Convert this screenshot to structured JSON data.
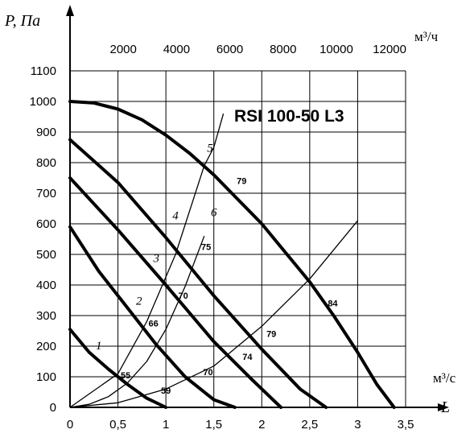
{
  "chart_data": {
    "type": "line",
    "title": "RSI  100-50  L3",
    "xlabel": "L",
    "x_unit": "м³/с",
    "ylabel": "P, Па",
    "x2_unit": "м³/ч",
    "xlim": [
      0,
      3.5
    ],
    "ylim": [
      0,
      1100
    ],
    "x2lim": [
      0,
      12600
    ],
    "grid": true,
    "x_ticks": [
      "0",
      "0,5",
      "1",
      "1,5",
      "2",
      "2,5",
      "3",
      "3,5"
    ],
    "y_ticks": [
      "0",
      "100",
      "200",
      "300",
      "400",
      "500",
      "600",
      "700",
      "800",
      "900",
      "1000",
      "1100"
    ],
    "x2_ticks": [
      "2000",
      "4000",
      "6000",
      "8000",
      "10000",
      "12000"
    ],
    "fan_curves": [
      {
        "x": [
          0,
          0.2,
          0.4,
          0.6,
          0.8,
          1.0
        ],
        "y": [
          255,
          180,
          125,
          75,
          30,
          0
        ]
      },
      {
        "x": [
          0,
          0.3,
          0.6,
          0.9,
          1.2,
          1.5,
          1.72
        ],
        "y": [
          590,
          445,
          325,
          205,
          100,
          25,
          0
        ]
      },
      {
        "x": [
          0,
          0.5,
          1.0,
          1.5,
          1.9,
          2.2
        ],
        "y": [
          750,
          580,
          400,
          215,
          90,
          0
        ]
      },
      {
        "x": [
          0,
          0.5,
          1.0,
          1.5,
          2.0,
          2.4,
          2.67
        ],
        "y": [
          875,
          735,
          555,
          365,
          190,
          60,
          0
        ]
      },
      {
        "x": [
          0,
          0.25,
          0.5,
          0.75,
          1.0,
          1.25,
          1.5,
          1.75,
          2.0,
          2.25,
          2.5,
          2.75,
          3.0,
          3.2,
          3.38
        ],
        "y": [
          1000,
          995,
          975,
          940,
          890,
          830,
          760,
          680,
          600,
          505,
          410,
          300,
          180,
          75,
          0
        ]
      }
    ],
    "system_curves": [
      {
        "label": "1",
        "x": [
          0,
          0.2,
          0.4,
          0.6,
          0.8,
          1.0,
          1.2,
          1.4
        ],
        "y": [
          0,
          10,
          35,
          80,
          150,
          255,
          395,
          560
        ]
      },
      {
        "label": "2",
        "x": [
          0,
          0.5,
          1.0,
          1.5,
          2.0,
          2.5,
          3.0
        ],
        "y": [
          0,
          15,
          60,
          135,
          265,
          420,
          610
        ]
      },
      {
        "label": "3",
        "x": [
          0,
          0.5,
          0.8,
          1.1,
          1.4,
          1.5,
          1.6
        ],
        "y": [
          0,
          110,
          280,
          500,
          790,
          850,
          960
        ]
      }
    ],
    "efficiency_labels": [
      "55",
      "59",
      "66",
      "70",
      "70",
      "74",
      "75",
      "79",
      "79",
      "84"
    ],
    "curve_numbers": [
      "1",
      "2",
      "3",
      "4",
      "5",
      "6"
    ]
  }
}
